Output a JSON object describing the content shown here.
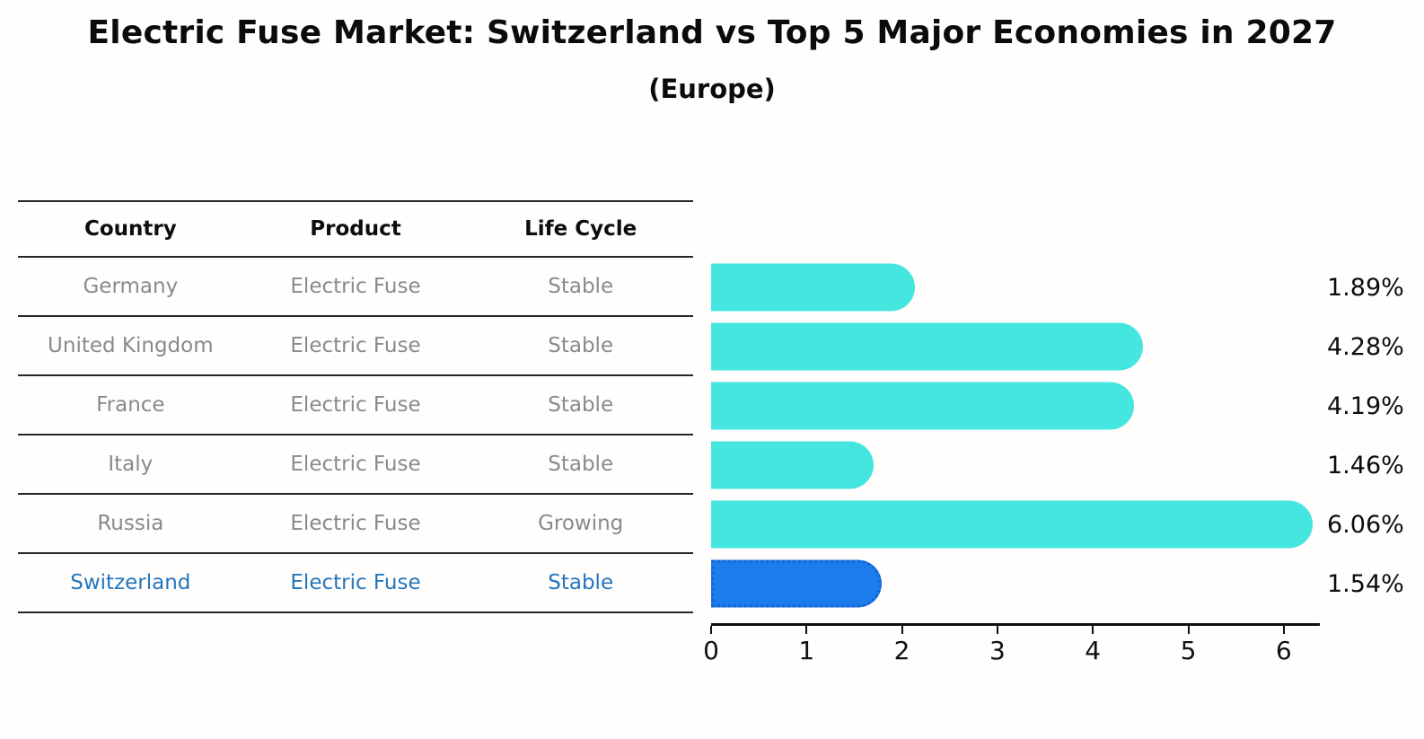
{
  "title": "Electric Fuse Market: Switzerland vs Top 5 Major Economies in 2027",
  "subtitle": "(Europe)",
  "colors": {
    "bar_default": "#46e6e0",
    "bar_highlight": "#1c7cec",
    "highlight_border": "#1563d2",
    "highlight_text": "#2575be",
    "row_text": "#8a8a8a",
    "axis": "#111111"
  },
  "table": {
    "columns": [
      "Country",
      "Product",
      "Life Cycle"
    ]
  },
  "chart_data": {
    "type": "bar",
    "orientation": "horizontal",
    "title": "Electric Fuse Market: Switzerland vs Top 5 Major Economies in 2027 (Europe)",
    "xlabel": "",
    "ylabel": "",
    "xlim": [
      0,
      6.5
    ],
    "xticks": [
      0,
      1,
      2,
      3,
      4,
      5,
      6
    ],
    "grid": false,
    "legend": false,
    "rows": [
      {
        "country": "Germany",
        "product": "Electric Fuse",
        "life_cycle": "Stable",
        "value": 1.89,
        "label": "1.89%",
        "highlight": false
      },
      {
        "country": "United Kingdom",
        "product": "Electric Fuse",
        "life_cycle": "Stable",
        "value": 4.28,
        "label": "4.28%",
        "highlight": false
      },
      {
        "country": "France",
        "product": "Electric Fuse",
        "life_cycle": "Stable",
        "value": 4.19,
        "label": "4.19%",
        "highlight": false
      },
      {
        "country": "Italy",
        "product": "Electric Fuse",
        "life_cycle": "Stable",
        "value": 1.46,
        "label": "1.46%",
        "highlight": false
      },
      {
        "country": "Russia",
        "product": "Electric Fuse",
        "life_cycle": "Growing",
        "value": 6.06,
        "label": "6.06%",
        "highlight": false
      },
      {
        "country": "Switzerland",
        "product": "Electric Fuse",
        "life_cycle": "Stable",
        "value": 1.54,
        "label": "1.54%",
        "highlight": true
      }
    ]
  }
}
